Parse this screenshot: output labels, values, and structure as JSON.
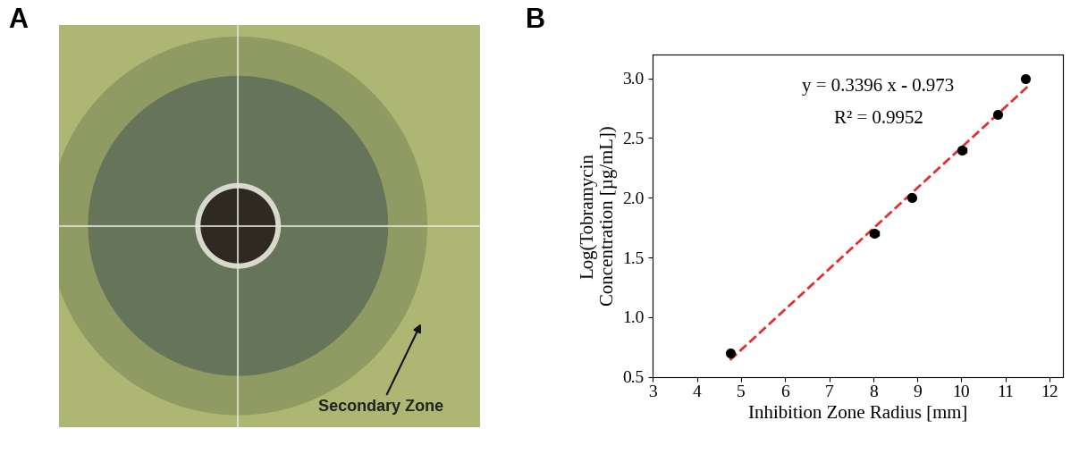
{
  "photo": {
    "label": "A",
    "annotation": "Secondary Zone"
  },
  "chart_data": {
    "type": "scatter",
    "title": "B",
    "x_label": "Inhibition Zone Radius [mm]",
    "y_label": "Log(Tobramycin\nConcentration [µg/mL])",
    "annotations": [
      "y = 0.3396 x - 0.973",
      "R² = 0.9952"
    ],
    "series": [
      {
        "type": "scatter",
        "color": "#000000",
        "marker": "circle",
        "x": [
          4.75,
          8.02,
          8.87,
          10.02,
          10.82,
          11.45
        ],
        "values": [
          0.699,
          1.699,
          2.0,
          2.398,
          2.699,
          3.0
        ],
        "x_error": [
          0.04,
          0.1,
          0.04,
          0.1,
          0.05,
          0.04
        ]
      },
      {
        "type": "line",
        "color": "#e03030",
        "line_style": "dashed",
        "x": [
          4.75,
          11.5
        ],
        "values": [
          0.64,
          2.93
        ]
      }
    ],
    "xlim": [
      3,
      12.3
    ],
    "xticks": [
      3,
      4,
      5,
      6,
      7,
      8,
      9,
      10,
      11,
      12
    ],
    "ylim": [
      0.5,
      3.2
    ],
    "yticks": [
      0.5,
      {
        "value": 1,
        "label": "1.0"
      },
      1.5,
      {
        "value": 2,
        "label": "2.0"
      },
      2.5,
      {
        "value": 3,
        "label": "3.0"
      }
    ],
    "grid": false
  }
}
